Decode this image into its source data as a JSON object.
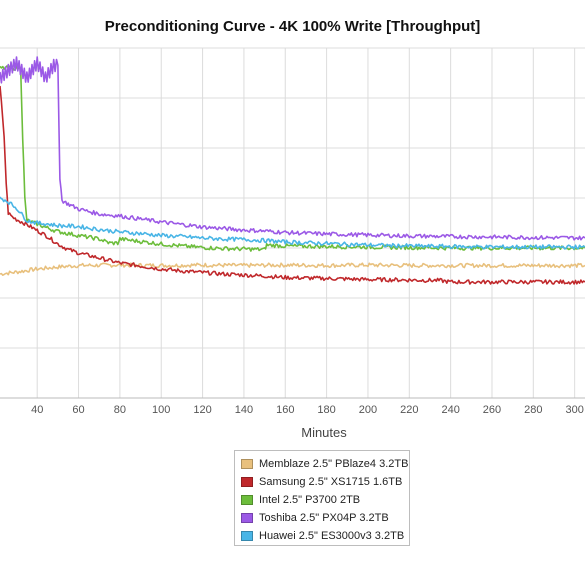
{
  "chart_data": {
    "type": "line",
    "title": "Preconditioning Curve - 4K 100% Write [Throughput]",
    "xlabel": "Minutes",
    "ylabel": "",
    "xlim": [
      22,
      305
    ],
    "ylim": [
      0,
      700
    ],
    "x_ticks": [
      40,
      60,
      80,
      100,
      120,
      140,
      160,
      180,
      200,
      220,
      240,
      260,
      280,
      300
    ],
    "grid": true,
    "legend_position": "bottom-center",
    "series": [
      {
        "name": "Memblaze 2.5\" PBlaze4 3.2TB",
        "color": "#e8c07d",
        "points": [
          [
            22,
            248
          ],
          [
            30,
            252
          ],
          [
            40,
            258
          ],
          [
            50,
            262
          ],
          [
            60,
            265
          ],
          [
            80,
            266
          ],
          [
            100,
            265
          ],
          [
            120,
            266
          ],
          [
            140,
            265
          ],
          [
            160,
            266
          ],
          [
            180,
            265
          ],
          [
            200,
            266
          ],
          [
            220,
            265
          ],
          [
            240,
            265
          ],
          [
            260,
            265
          ],
          [
            280,
            265
          ],
          [
            305,
            265
          ]
        ]
      },
      {
        "name": "Samsung 2.5\" XS1715 1.6TB",
        "color": "#c0282b",
        "points": [
          [
            22,
            625
          ],
          [
            24,
            520
          ],
          [
            25,
            430
          ],
          [
            26,
            370
          ],
          [
            28,
            362
          ],
          [
            30,
            357
          ],
          [
            35,
            347
          ],
          [
            40,
            335
          ],
          [
            45,
            323
          ],
          [
            50,
            308
          ],
          [
            55,
            297
          ],
          [
            60,
            290
          ],
          [
            70,
            280
          ],
          [
            80,
            270
          ],
          [
            90,
            264
          ],
          [
            100,
            258
          ],
          [
            110,
            254
          ],
          [
            120,
            251
          ],
          [
            130,
            248
          ],
          [
            140,
            246
          ],
          [
            150,
            244
          ],
          [
            160,
            241
          ],
          [
            180,
            239
          ],
          [
            200,
            237
          ],
          [
            220,
            236
          ],
          [
            235,
            235
          ],
          [
            240,
            232
          ],
          [
            260,
            232
          ],
          [
            280,
            232
          ],
          [
            305,
            232
          ]
        ]
      },
      {
        "name": "Intel 2.5\" P3700 2TB",
        "color": "#6cbd3b",
        "points": [
          [
            22,
            660
          ],
          [
            32,
            660
          ],
          [
            33,
            520
          ],
          [
            34,
            400
          ],
          [
            35,
            355
          ],
          [
            40,
            348
          ],
          [
            45,
            340
          ],
          [
            50,
            333
          ],
          [
            60,
            325
          ],
          [
            70,
            318
          ],
          [
            75,
            310
          ],
          [
            79,
            310
          ],
          [
            80,
            318
          ],
          [
            90,
            313
          ],
          [
            100,
            308
          ],
          [
            110,
            304
          ],
          [
            120,
            301
          ],
          [
            130,
            299
          ],
          [
            140,
            298
          ],
          [
            150,
            297
          ],
          [
            151,
            306
          ],
          [
            160,
            304
          ],
          [
            180,
            303
          ],
          [
            200,
            302
          ],
          [
            220,
            301
          ],
          [
            240,
            300
          ],
          [
            260,
            300
          ],
          [
            280,
            300
          ],
          [
            305,
            300
          ]
        ]
      },
      {
        "name": "Toshiba 2.5\" PX04P 3.2TB",
        "color": "#9b59e6",
        "points": [
          [
            22,
            640
          ],
          [
            30,
            670
          ],
          [
            35,
            640
          ],
          [
            40,
            670
          ],
          [
            44,
            640
          ],
          [
            48,
            665
          ],
          [
            50,
            665
          ],
          [
            51,
            440
          ],
          [
            52,
            395
          ],
          [
            55,
            388
          ],
          [
            60,
            378
          ],
          [
            70,
            368
          ],
          [
            80,
            364
          ],
          [
            90,
            358
          ],
          [
            100,
            352
          ],
          [
            110,
            347
          ],
          [
            120,
            342
          ],
          [
            130,
            339
          ],
          [
            140,
            336
          ],
          [
            150,
            334
          ],
          [
            160,
            331
          ],
          [
            180,
            328
          ],
          [
            200,
            326
          ],
          [
            220,
            324
          ],
          [
            240,
            323
          ],
          [
            260,
            322
          ],
          [
            280,
            321
          ],
          [
            305,
            320
          ]
        ]
      },
      {
        "name": "Huawei 2.5\" ES3000v3 3.2TB",
        "color": "#49b5e6",
        "points": [
          [
            22,
            400
          ],
          [
            25,
            395
          ],
          [
            30,
            380
          ],
          [
            35,
            355
          ],
          [
            40,
            350
          ],
          [
            45,
            348
          ],
          [
            50,
            345
          ],
          [
            60,
            343
          ],
          [
            70,
            337
          ],
          [
            80,
            332
          ],
          [
            90,
            329
          ],
          [
            100,
            325
          ],
          [
            110,
            323
          ],
          [
            120,
            320
          ],
          [
            130,
            318
          ],
          [
            140,
            317
          ],
          [
            150,
            315
          ],
          [
            160,
            312
          ],
          [
            180,
            309
          ],
          [
            200,
            306
          ],
          [
            220,
            304
          ],
          [
            240,
            303
          ],
          [
            260,
            302
          ],
          [
            280,
            302
          ],
          [
            305,
            302
          ]
        ]
      }
    ]
  },
  "legend": {
    "items": [
      {
        "label": "Memblaze 2.5\" PBlaze4 3.2TB",
        "color": "#e8c07d"
      },
      {
        "label": "Samsung 2.5\" XS1715 1.6TB",
        "color": "#c0282b"
      },
      {
        "label": "Intel 2.5\" P3700 2TB",
        "color": "#6cbd3b"
      },
      {
        "label": "Toshiba 2.5\" PX04P 3.2TB",
        "color": "#9b59e6"
      },
      {
        "label": "Huawei 2.5\" ES3000v3 3.2TB",
        "color": "#49b5e6"
      }
    ]
  }
}
